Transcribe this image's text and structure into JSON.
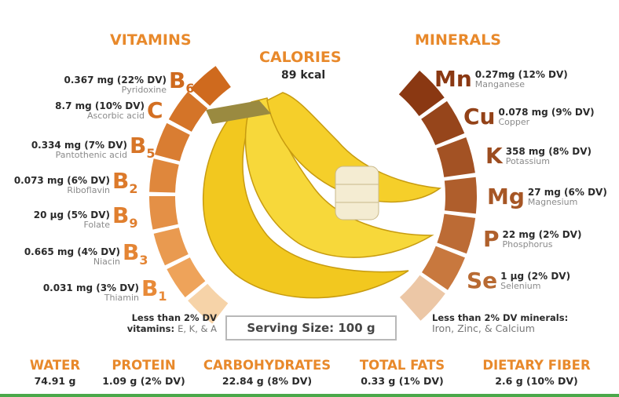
{
  "calories": {
    "label": "CALORIES",
    "value": "89 kcal"
  },
  "vitamins": {
    "title": "VITAMINS",
    "items": [
      {
        "amount": "0.367 mg (22% DV)",
        "name": "Pyridoxine",
        "symbol": "B",
        "subscript": "6"
      },
      {
        "amount": "8.7 mg (10% DV)",
        "name": "Ascorbic acid",
        "symbol": "C",
        "subscript": null
      },
      {
        "amount": "0.334 mg (7% DV)",
        "name": "Pantothenic acid",
        "symbol": "B",
        "subscript": "5"
      },
      {
        "amount": "0.073 mg (6% DV)",
        "name": "Riboflavin",
        "symbol": "B",
        "subscript": "2"
      },
      {
        "amount": "20 µg (5% DV)",
        "name": "Folate",
        "symbol": "B",
        "subscript": "9"
      },
      {
        "amount": "0.665 mg (4% DV)",
        "name": "Niacin",
        "symbol": "B",
        "subscript": "3"
      },
      {
        "amount": "0.031 mg (3% DV)",
        "name": "Thiamin",
        "symbol": "B",
        "subscript": "1"
      }
    ],
    "other": {
      "line1": "Less than 2% DV",
      "line2": "vitamins:",
      "list": "E, K, & A"
    }
  },
  "minerals": {
    "title": "MINERALS",
    "items": [
      {
        "amount": "0.27mg (12% DV)",
        "name": "Manganese",
        "symbol": "Mn"
      },
      {
        "amount": "0.078 mg (9% DV)",
        "name": "Copper",
        "symbol": "Cu"
      },
      {
        "amount": "358 mg (8% DV)",
        "name": "Potassium",
        "symbol": "K"
      },
      {
        "amount": "27 mg (6% DV)",
        "name": "Magnesium",
        "symbol": "Mg"
      },
      {
        "amount": "22 mg (2% DV)",
        "name": "Phosphorus",
        "symbol": "P"
      },
      {
        "amount": "1 µg (2% DV)",
        "name": "Selenium",
        "symbol": "Se"
      }
    ],
    "other": {
      "line1": "Less than 2% DV minerals:",
      "list": "Iron, Zinc, & Calcium"
    }
  },
  "serving": "Serving Size: 100 g",
  "nutrients": [
    {
      "label": "WATER",
      "value": "74.91 g"
    },
    {
      "label": "PROTEIN",
      "value": "1.09 g (2% DV)"
    },
    {
      "label": "CARBOHYDRATES",
      "value": "22.84 g (8% DV)"
    },
    {
      "label": "TOTAL FATS",
      "value": "0.33 g (1% DV)"
    },
    {
      "label": "DIETARY FIBER",
      "value": "2.6 g (10% DV)"
    }
  ]
}
